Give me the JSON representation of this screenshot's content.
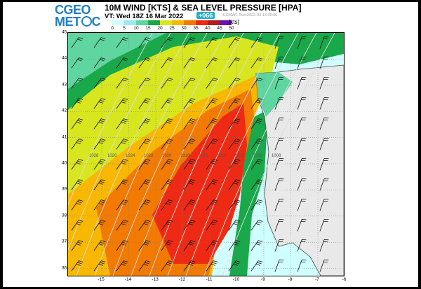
{
  "logo": {
    "line1": "CGEO",
    "line2a": "MET",
    "line2b": "C"
  },
  "title": "10M WIND [KTS] & SEA LEVEL PRESSURE [HPA]",
  "valid_time": "VT: Wed 18Z 16 Mar 2022",
  "forecast_hour": "+066",
  "run_info": "ECMWF    Run:2022-03-14 00:00",
  "colorbar": {
    "ticks": [
      "0",
      "5",
      "10",
      "15",
      "20",
      "25",
      "30",
      "35",
      "40",
      "45",
      "50"
    ],
    "colors": [
      "#ffffff",
      "#d0ffff",
      "#9ee8f2",
      "#5fd6a0",
      "#19a84a",
      "#d8e620",
      "#f8b800",
      "#f27a00",
      "#ef2a14",
      "#b41d1f",
      "#6e12a8"
    ],
    "units": "[kts]"
  },
  "map": {
    "lat_labels": [
      "45",
      "44",
      "43",
      "42",
      "41",
      "40",
      "39",
      "38",
      "37",
      "36"
    ],
    "lon_labels": [
      "-15",
      "-14",
      "-13",
      "-12",
      "-11",
      "-10",
      "-9",
      "-8",
      "-7",
      "-6"
    ],
    "pressure_labels": [
      "1028",
      "1026",
      "1024",
      "1022",
      "1020",
      "1018",
      "1016",
      "1014",
      "1012",
      "1010",
      "1008"
    ],
    "colors": {
      "land": "#e9e9e9",
      "coast": "#444444",
      "isobar": "#dddddd",
      "grid": "#777777"
    }
  }
}
